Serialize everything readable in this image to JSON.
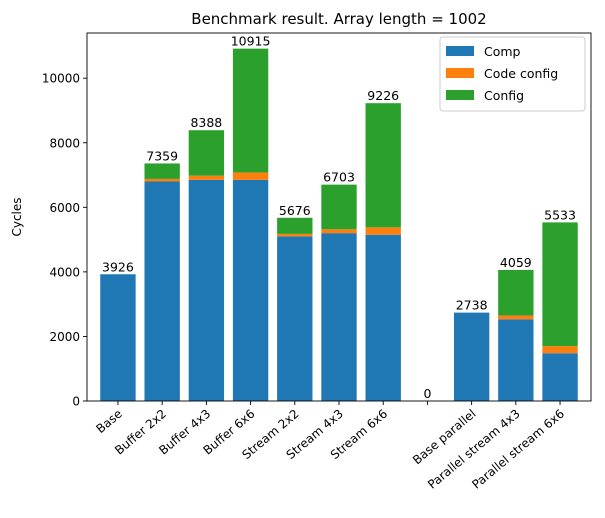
{
  "chart_data": {
    "type": "bar",
    "stacked": true,
    "title": "Benchmark result. Array length = 1002",
    "xlabel": "",
    "ylabel": "Cycles",
    "ylim": [
      0,
      11400
    ],
    "yticks": [
      0,
      2000,
      4000,
      6000,
      8000,
      10000
    ],
    "categories": [
      "Base",
      "Buffer 2x2",
      "Buffer 4x3",
      "Buffer 6x6",
      "Stream 2x2",
      "Stream 4x3",
      "Stream 6x6",
      "",
      "Base parallel",
      "Parallel stream 4x3",
      "Parallel stream 6x6"
    ],
    "series": [
      {
        "name": "Comp",
        "color": "#1f77b4",
        "values": [
          3926,
          6800,
          6850,
          6850,
          5100,
          5200,
          5150,
          0,
          2738,
          2530,
          1480
        ]
      },
      {
        "name": "Code config",
        "color": "#ff7f0e",
        "values": [
          0,
          80,
          130,
          230,
          76,
          120,
          230,
          0,
          0,
          120,
          220
        ]
      },
      {
        "name": "Config",
        "color": "#2ca02c",
        "values": [
          0,
          479,
          1408,
          3835,
          500,
          1383,
          3846,
          0,
          0,
          1409,
          3833
        ]
      }
    ],
    "totals": [
      "3926",
      "7359",
      "8388",
      "10915",
      "5676",
      "6703",
      "9226",
      "0",
      "2738",
      "4059",
      "5533"
    ],
    "legend_position": "top-right",
    "grid": false
  }
}
